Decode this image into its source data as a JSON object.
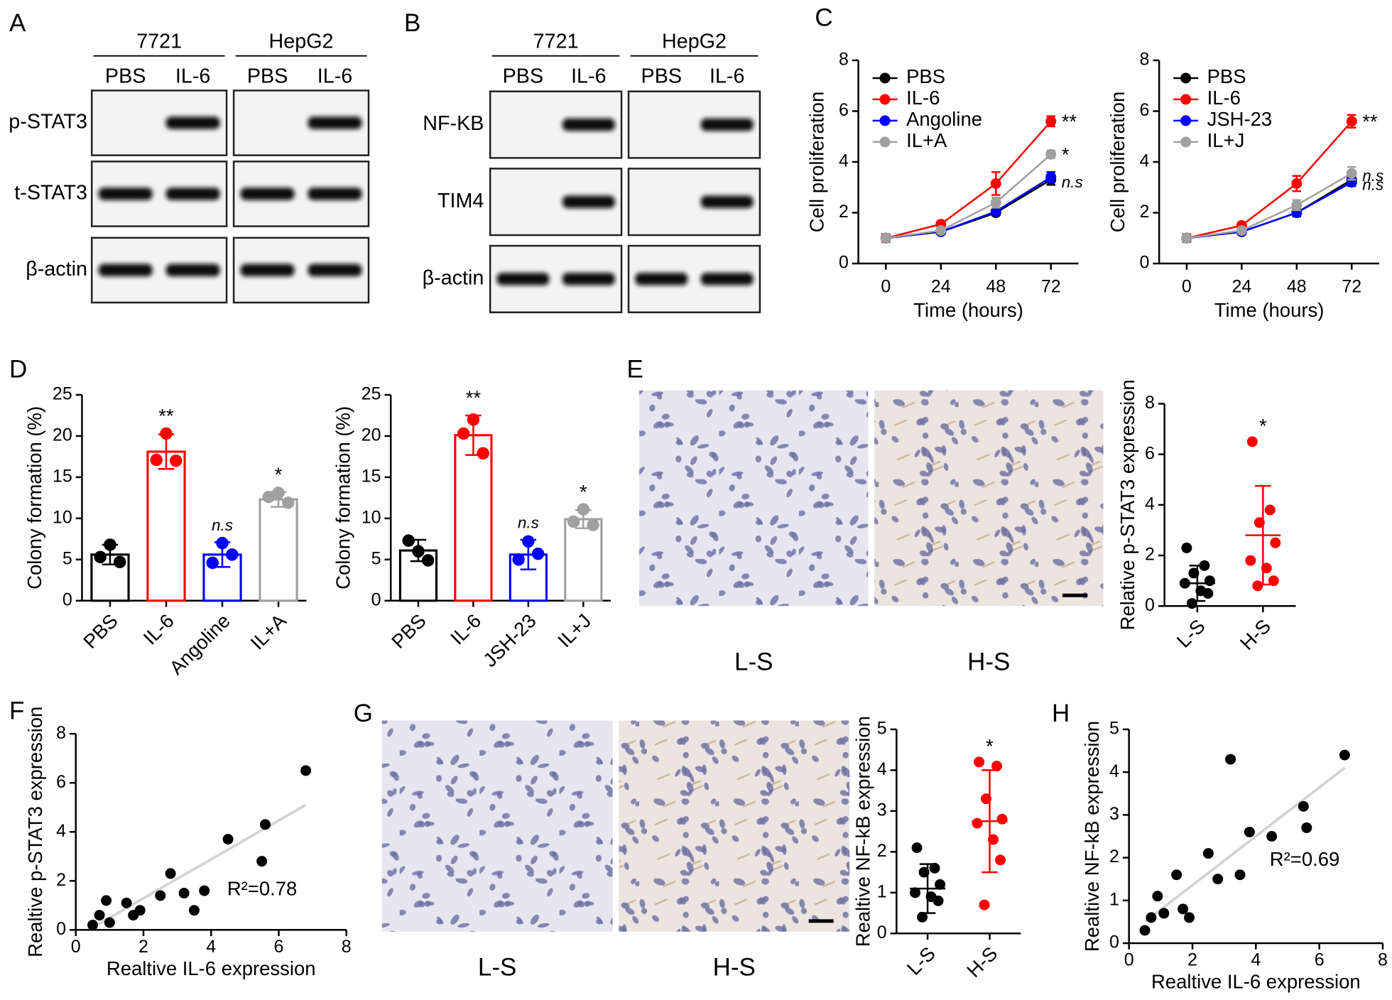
{
  "panel_letters": [
    "A",
    "B",
    "C",
    "D",
    "E",
    "F",
    "G",
    "H"
  ],
  "blots": [
    {
      "groups": [
        {
          "name": "7721",
          "lanes": [
            "PBS",
            "IL-6"
          ]
        },
        {
          "name": "HepG2",
          "lanes": [
            "PBS",
            "IL-6"
          ]
        }
      ],
      "rows": [
        {
          "label": "p-STAT3",
          "bands": [
            0,
            1,
            0,
            1
          ]
        },
        {
          "label": "t-STAT3",
          "bands": [
            1,
            1,
            1,
            1
          ]
        },
        {
          "label": "β-actin",
          "bands": [
            1,
            1,
            1,
            1
          ]
        }
      ]
    },
    {
      "groups": [
        {
          "name": "7721",
          "lanes": [
            "PBS",
            "IL-6"
          ]
        },
        {
          "name": "HepG2",
          "lanes": [
            "PBS",
            "IL-6"
          ]
        }
      ],
      "rows": [
        {
          "label": "NF-KB",
          "bands": [
            0,
            1,
            0,
            1
          ]
        },
        {
          "label": "TIM4",
          "bands": [
            0,
            1,
            0,
            1
          ]
        },
        {
          "label": "β-actin",
          "bands": [
            1,
            1,
            1,
            1
          ]
        }
      ]
    }
  ],
  "histology": [
    {
      "labels": [
        "L-S",
        "H-S"
      ]
    },
    {
      "labels": [
        "L-S",
        "H-S"
      ]
    }
  ],
  "chart_data": [
    {
      "type": "line",
      "x": [
        0,
        24,
        48,
        72
      ],
      "xlim": [
        -12,
        84
      ],
      "xticks": [
        0,
        24,
        48,
        72
      ],
      "ylim": [
        0,
        8
      ],
      "yticks": [
        0,
        2,
        4,
        6,
        8
      ],
      "xlabel": "Time (hours)",
      "ylabel": "Cell proliferation",
      "legend": "upper left",
      "series": [
        {
          "name": "PBS",
          "color": "#000000",
          "values": [
            1,
            1.25,
            2,
            3.3
          ],
          "errors": [
            0.15,
            0.08,
            0.1,
            0.2
          ],
          "annotation": {
            "text": "n.s",
            "italic": true
          }
        },
        {
          "name": "IL-6",
          "color": "#ff0000",
          "values": [
            1,
            1.55,
            3.15,
            5.6
          ],
          "errors": [
            0.15,
            0.08,
            0.45,
            0.2
          ],
          "annotation": {
            "text": "**"
          }
        },
        {
          "name": "Angoline",
          "color": "#0000ff",
          "values": [
            1,
            1.25,
            2.05,
            3.4
          ],
          "errors": [
            0.1,
            0.08,
            0.1,
            0.2
          ]
        },
        {
          "name": "IL+A",
          "color": "#a0a0a0",
          "values": [
            1,
            1.3,
            2.4,
            4.3
          ],
          "errors": [
            0.1,
            0.08,
            0.2,
            0.15
          ],
          "annotation": {
            "text": "*"
          }
        }
      ]
    },
    {
      "type": "line",
      "x": [
        0,
        24,
        48,
        72
      ],
      "xlim": [
        -12,
        84
      ],
      "xticks": [
        0,
        24,
        48,
        72
      ],
      "ylim": [
        0,
        8
      ],
      "yticks": [
        0,
        2,
        4,
        6,
        8
      ],
      "xlabel": "Time (hours)",
      "ylabel": "Cell proliferation",
      "legend": "upper left",
      "series": [
        {
          "name": "PBS",
          "color": "#000000",
          "values": [
            1,
            1.25,
            2,
            3.3
          ],
          "errors": [
            0.15,
            0.08,
            0.15,
            0.2
          ]
        },
        {
          "name": "IL-6",
          "color": "#ff0000",
          "values": [
            1,
            1.5,
            3.15,
            5.6
          ],
          "errors": [
            0.15,
            0.1,
            0.3,
            0.25
          ],
          "annotation": {
            "text": "**"
          }
        },
        {
          "name": "JSH-23",
          "color": "#0000ff",
          "values": [
            1,
            1.25,
            2,
            3.2
          ],
          "errors": [
            0.1,
            0.08,
            0.1,
            0.15
          ],
          "annotation": {
            "text": "n.s",
            "italic": true
          }
        },
        {
          "name": "IL+J",
          "color": "#a0a0a0",
          "values": [
            1,
            1.3,
            2.3,
            3.55
          ],
          "errors": [
            0.1,
            0.08,
            0.2,
            0.25
          ],
          "annotation": {
            "text": "n.s",
            "italic": true
          }
        }
      ]
    },
    {
      "type": "bar",
      "categories": [
        "PBS",
        "IL-6",
        "Angoline",
        "IL+A"
      ],
      "colors": [
        "#000000",
        "#ff0000",
        "#0000ff",
        "#a0a0a0"
      ],
      "values": [
        5.6,
        18.1,
        5.6,
        12.3
      ],
      "errors": [
        1.2,
        2.1,
        1.5,
        0.9
      ],
      "points": [
        [
          5.3,
          6.8,
          4.7
        ],
        [
          17.1,
          20.3,
          17.0
        ],
        [
          4.6,
          7.0,
          5.6
        ],
        [
          12.6,
          13.1,
          11.9
        ]
      ],
      "annotations": [
        null,
        {
          "text": "**"
        },
        {
          "text": "n.s",
          "italic": true
        },
        {
          "text": "*"
        }
      ],
      "ylabel": "Colony formation (%)",
      "ylim": [
        0,
        25
      ],
      "yticks": [
        0,
        5,
        10,
        15,
        20,
        25
      ]
    },
    {
      "type": "bar",
      "categories": [
        "PBS",
        "IL-6",
        "JSH-23",
        "IL+J"
      ],
      "colors": [
        "#000000",
        "#ff0000",
        "#0000ff",
        "#a0a0a0"
      ],
      "values": [
        6.1,
        20.1,
        5.6,
        9.9
      ],
      "errors": [
        1.3,
        2.4,
        1.8,
        1.1
      ],
      "points": [
        [
          7.3,
          6.0,
          4.9
        ],
        [
          20.3,
          22.0,
          17.9
        ],
        [
          5.0,
          7.2,
          5.7
        ],
        [
          9.6,
          11.1,
          9.2
        ]
      ],
      "annotations": [
        null,
        {
          "text": "**"
        },
        {
          "text": "n.s",
          "italic": true
        },
        {
          "text": "*"
        }
      ],
      "ylabel": "Colony formation (%)",
      "ylim": [
        0,
        25
      ],
      "yticks": [
        0,
        5,
        10,
        15,
        20,
        25
      ]
    },
    {
      "type": "dot",
      "categories": [
        "L-S",
        "H-S"
      ],
      "colors": [
        "#000000",
        "#ff0000"
      ],
      "points": [
        [
          2.3,
          1.6,
          1.3,
          1.0,
          0.9,
          0.6,
          0.5,
          0.1
        ],
        [
          6.5,
          3.8,
          3.3,
          2.5,
          1.8,
          1.5,
          1.0,
          0.8
        ]
      ],
      "means": [
        0.9,
        2.8
      ],
      "sd": [
        0.7,
        1.95
      ],
      "annotations": [
        null,
        {
          "text": "*"
        }
      ],
      "ylabel": "Relative p-STAT3 expression",
      "ylim": [
        0,
        8
      ],
      "yticks": [
        0,
        2,
        4,
        6,
        8
      ]
    },
    {
      "type": "scatter",
      "color": "#000000",
      "x": [
        0.5,
        0.7,
        0.9,
        1.0,
        1.5,
        1.7,
        1.9,
        2.5,
        2.8,
        3.2,
        3.5,
        3.8,
        4.5,
        5.5,
        5.6,
        6.8
      ],
      "y": [
        0.2,
        0.6,
        1.2,
        0.3,
        1.1,
        0.6,
        0.8,
        1.4,
        2.3,
        1.5,
        0.8,
        1.6,
        3.7,
        2.8,
        4.3,
        6.5
      ],
      "trendline": {
        "x": [
          0.5,
          6.8
        ],
        "y": [
          0.1,
          5.1
        ],
        "color": "#d3d3d3"
      },
      "r2_label": "R²=0.78",
      "xlabel": "Realtive IL-6 expression",
      "ylabel": "Realtive p-STAT3 expression",
      "xlim": [
        0,
        8
      ],
      "ylim": [
        0,
        8
      ],
      "xticks": [
        0,
        2,
        4,
        6,
        8
      ],
      "yticks": [
        0,
        2,
        4,
        6,
        8
      ]
    },
    {
      "type": "dot",
      "categories": [
        "L-S",
        "H-S"
      ],
      "colors": [
        "#000000",
        "#ff0000"
      ],
      "points": [
        [
          2.1,
          1.6,
          1.5,
          1.2,
          1.0,
          0.9,
          0.8,
          0.4
        ],
        [
          4.2,
          4.1,
          3.3,
          2.8,
          2.7,
          2.3,
          1.8,
          0.7
        ]
      ],
      "means": [
        1.1,
        2.75
      ],
      "sd": [
        0.6,
        1.25
      ],
      "annotations": [
        null,
        {
          "text": "*"
        }
      ],
      "ylabel": "Realtive NF-kB expression",
      "ylim": [
        0,
        5
      ],
      "yticks": [
        0,
        1,
        2,
        3,
        4,
        5
      ]
    },
    {
      "type": "scatter",
      "color": "#000000",
      "x": [
        0.5,
        0.7,
        0.9,
        1.1,
        1.5,
        1.7,
        1.9,
        2.5,
        2.8,
        3.2,
        3.5,
        3.8,
        4.5,
        5.5,
        5.6,
        6.8
      ],
      "y": [
        0.3,
        0.6,
        1.1,
        0.7,
        1.6,
        0.8,
        0.6,
        2.1,
        1.5,
        4.3,
        1.6,
        2.6,
        2.5,
        3.2,
        2.7,
        4.4
      ],
      "trendline": {
        "x": [
          0.5,
          6.8
        ],
        "y": [
          0.5,
          4.1
        ],
        "color": "#d3d3d3"
      },
      "r2_label": "R²=0.69",
      "xlabel": "Realtive IL-6 expression",
      "ylabel": "Realtive NF-kB expression",
      "xlim": [
        0,
        8
      ],
      "ylim": [
        0,
        5
      ],
      "xticks": [
        0,
        2,
        4,
        6,
        8
      ],
      "yticks": [
        0,
        1,
        2,
        3,
        4,
        5
      ]
    }
  ]
}
